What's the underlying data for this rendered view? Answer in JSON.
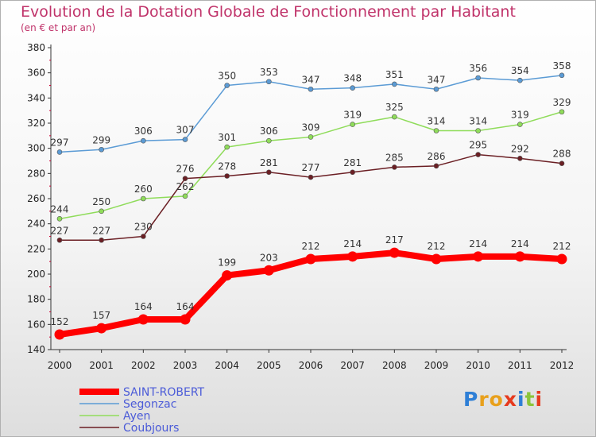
{
  "title": "Evolution de la Dotation Globale de Fonctionnement par Habitant",
  "subtitle": "(en € et par an)",
  "logo": {
    "text": "Proxiti",
    "colors": [
      "#2e7fd6",
      "#e8a01c",
      "#e8a01c",
      "#e63a1e",
      "#2e7fd6",
      "#8bc43a",
      "#e63a1e"
    ]
  },
  "chart_data": {
    "type": "line",
    "title": "Evolution de la Dotation Globale de Fonctionnement par Habitant",
    "subtitle": "(en € et par an)",
    "xlabel": "",
    "ylabel": "",
    "ylim": [
      140,
      380
    ],
    "yticks": [
      140,
      160,
      180,
      200,
      220,
      240,
      260,
      280,
      300,
      320,
      340,
      360,
      380
    ],
    "x": [
      "2000",
      "2001",
      "2002",
      "2003",
      "2004",
      "2005",
      "2006",
      "2007",
      "2008",
      "2009",
      "2010",
      "2011",
      "2012"
    ],
    "grid": false,
    "legend_position": "bottom-left",
    "series": [
      {
        "name": "SAINT-ROBERT",
        "color": "#ff0000",
        "values": [
          152,
          157,
          164,
          164,
          199,
          203,
          212,
          214,
          217,
          212,
          214,
          214,
          212
        ]
      },
      {
        "name": "Segonzac",
        "color": "#5b9bd5",
        "values": [
          297,
          299,
          306,
          307,
          350,
          353,
          347,
          348,
          351,
          347,
          356,
          354,
          358
        ]
      },
      {
        "name": "Ayen",
        "color": "#8fdc5a",
        "values": [
          244,
          250,
          260,
          262,
          301,
          306,
          309,
          319,
          325,
          314,
          314,
          319,
          329
        ]
      },
      {
        "name": "Coubjours",
        "color": "#6b1f24",
        "values": [
          227,
          227,
          230,
          276,
          278,
          281,
          277,
          281,
          285,
          286,
          295,
          292,
          288
        ]
      }
    ]
  }
}
